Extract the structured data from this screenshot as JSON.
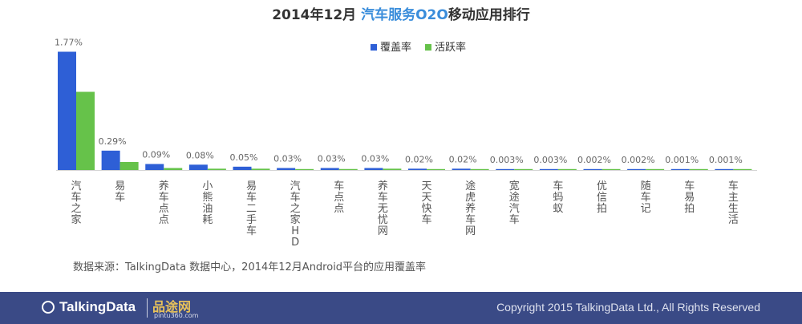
{
  "title": {
    "prefix": "2014年12月 ",
    "highlight": "汽车服务O2O",
    "suffix": "移动应用排行"
  },
  "colors": {
    "coverage": "#2e5fd6",
    "activity": "#66c24a",
    "highlight": "#3a8ddb",
    "footer": "#3a4a86"
  },
  "chart_data": {
    "type": "bar",
    "title": "2014年12月 汽车服务O2O移动应用排行",
    "categories": [
      "汽车之家",
      "易车",
      "养车点点",
      "小熊油耗",
      "易车二手车",
      "汽车之家HD",
      "车点点",
      "养车无忧网",
      "天天快车",
      "途虎养车网",
      "宽途汽车",
      "车蚂蚁",
      "优信拍",
      "随车记",
      "车易拍",
      "车主生活"
    ],
    "series": [
      {
        "name": "覆盖率",
        "color": "#2e5fd6",
        "values": [
          1.77,
          0.29,
          0.09,
          0.08,
          0.05,
          0.03,
          0.03,
          0.03,
          0.02,
          0.02,
          0.003,
          0.003,
          0.002,
          0.002,
          0.001,
          0.001
        ]
      },
      {
        "name": "活跃率",
        "color": "#66c24a",
        "values": [
          1.17,
          0.12,
          0.03,
          0.02,
          0.02,
          0.01,
          0.015,
          0.02,
          0.008,
          0.008,
          0.001,
          0.001,
          0.001,
          0.001,
          0.0005,
          0.0005
        ]
      }
    ],
    "data_labels": [
      "1.77%",
      "0.29%",
      "0.09%",
      "0.08%",
      "0.05%",
      "0.03%",
      "0.03%",
      "0.03%",
      "0.02%",
      "0.02%",
      "0.003%",
      "0.003%",
      "0.002%",
      "0.002%",
      "0.001%",
      "0.001%"
    ],
    "ylim": [
      0,
      1.8
    ],
    "legend": "top-center",
    "grid": false
  },
  "source": "数据来源：TalkingData 数据中心，2014年12月Android平台的应用覆盖率",
  "footer": {
    "logo": "TalkingData",
    "partner": "品途网",
    "partner_sub": "pintu360.com",
    "copyright": "Copyright 2015 TalkingData Ltd., All Rights Reserved"
  }
}
